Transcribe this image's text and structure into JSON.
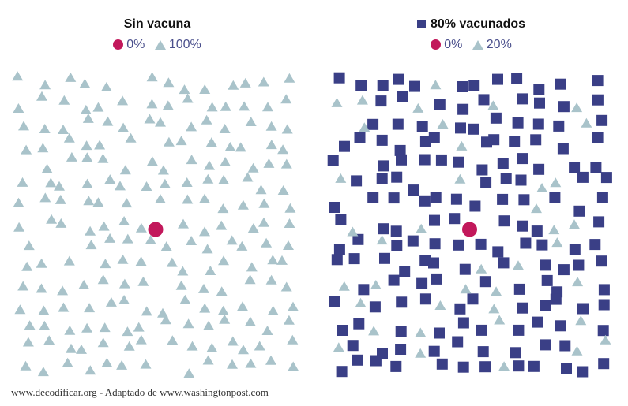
{
  "colors": {
    "infected": "#c2185b",
    "unprotected": "#a9c3ca",
    "vaccinated": "#3a3f86",
    "legend_text": "#4a4f8c"
  },
  "source": "www.decodificar.org - Adaptado de www.washingtonpost.com",
  "chart_data": [
    {
      "type": "scatter",
      "title": "Sin vacuna",
      "legend": [
        {
          "symbol": "circle",
          "label": "0%"
        },
        {
          "symbol": "triangle",
          "label": "100%"
        }
      ],
      "population": {
        "infected": 1,
        "unvaccinated": 200,
        "vaccinated": 0
      }
    },
    {
      "type": "scatter",
      "title": "80% vacunados",
      "legend": [
        {
          "symbol": "circle",
          "label": "0%"
        },
        {
          "symbol": "triangle",
          "label": "20%"
        }
      ],
      "population": {
        "infected": 1,
        "unvaccinated": 40,
        "vaccinated": 160
      }
    }
  ]
}
